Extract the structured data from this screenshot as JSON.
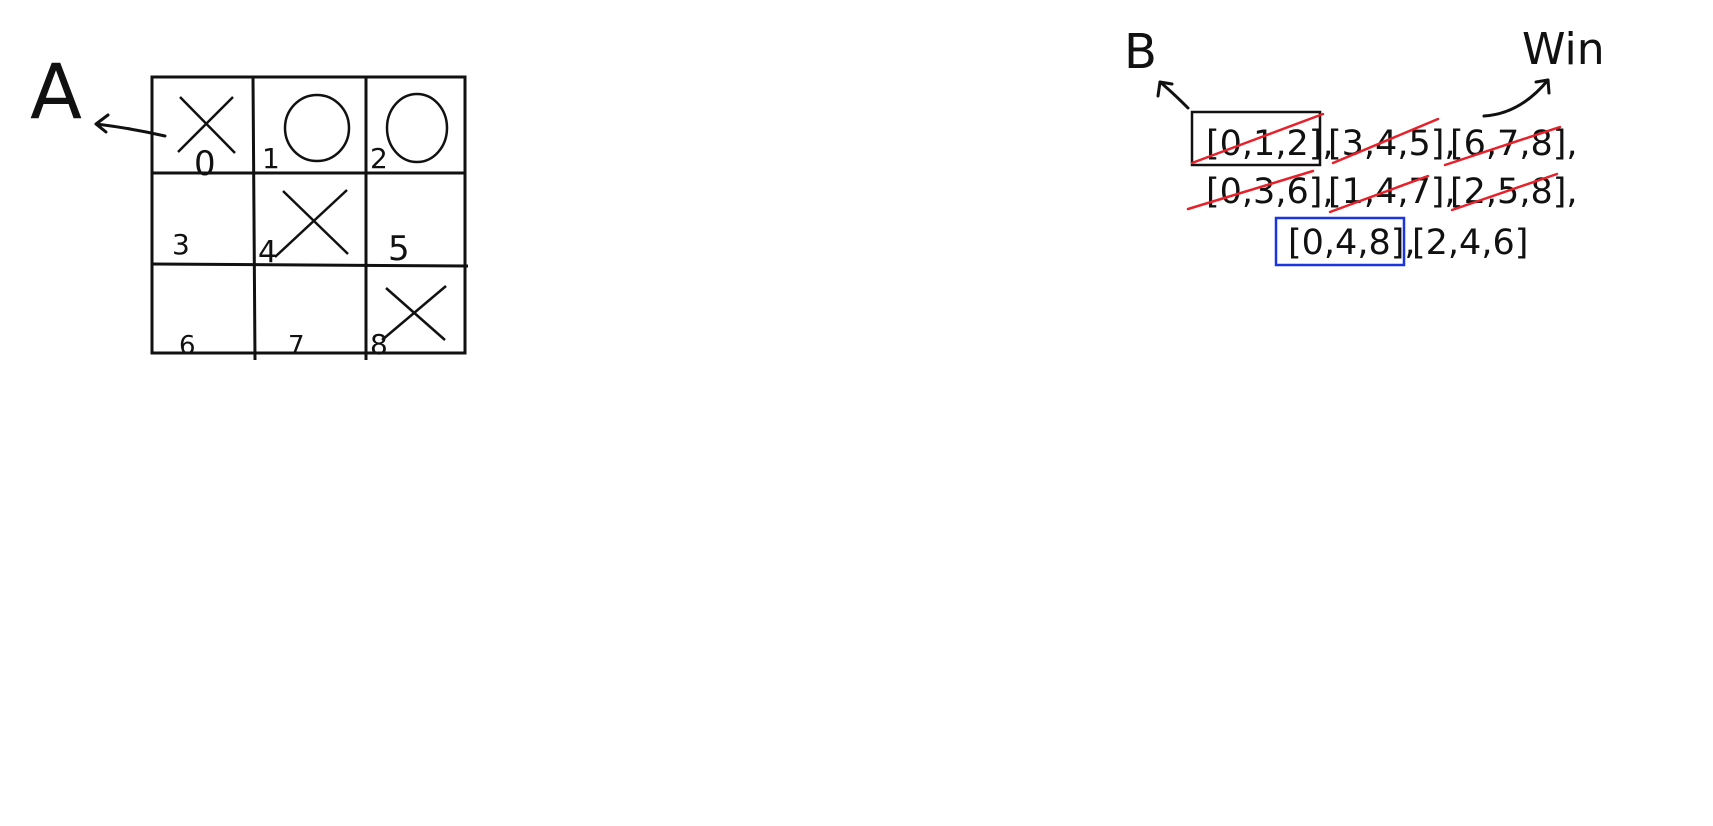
{
  "labels": {
    "a": "A",
    "b": "B",
    "win": "Win"
  },
  "board": {
    "cells": [
      {
        "index": "0",
        "mark": "X"
      },
      {
        "index": "1",
        "mark": "O"
      },
      {
        "index": "2",
        "mark": "O"
      },
      {
        "index": "3",
        "mark": ""
      },
      {
        "index": "4",
        "mark": "X"
      },
      {
        "index": "5",
        "mark": ""
      },
      {
        "index": "6",
        "mark": ""
      },
      {
        "index": "7",
        "mark": ""
      },
      {
        "index": "8",
        "mark": "X"
      }
    ]
  },
  "combos": {
    "rows": [
      [
        "[0,1,2],",
        "[3,4,5],",
        "[6,7,8],"
      ],
      [
        "[0,3,6],",
        "[1,4,7],",
        "[2,5,8],"
      ],
      [
        "[0,4,8],",
        "[2,4,6]"
      ]
    ],
    "struck": [
      "[0,1,2]",
      "[3,4,5]",
      "[6,7,8]",
      "[0,3,6]",
      "[1,4,7]",
      "[2,5,8]"
    ],
    "boxed_black": "[0,1,2]",
    "boxed_blue": "[0,4,8]"
  },
  "colors": {
    "ink": "#111111",
    "strike": "#e8202a",
    "highlight_box": "#1a35e0"
  }
}
